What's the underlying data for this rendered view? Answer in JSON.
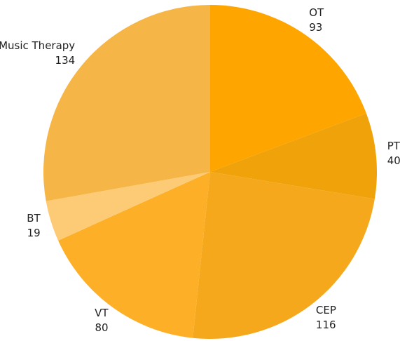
{
  "chart_data": {
    "type": "pie",
    "categories": [
      "OT",
      "PT",
      "CEP",
      "VT",
      "BT",
      "Music Therapy"
    ],
    "values": [
      93,
      40,
      116,
      80,
      19,
      134
    ],
    "colors": [
      "#ffa500",
      "#f0a20a",
      "#f5a81b",
      "#fcaf27",
      "#fdcb75",
      "#f5b647"
    ]
  }
}
